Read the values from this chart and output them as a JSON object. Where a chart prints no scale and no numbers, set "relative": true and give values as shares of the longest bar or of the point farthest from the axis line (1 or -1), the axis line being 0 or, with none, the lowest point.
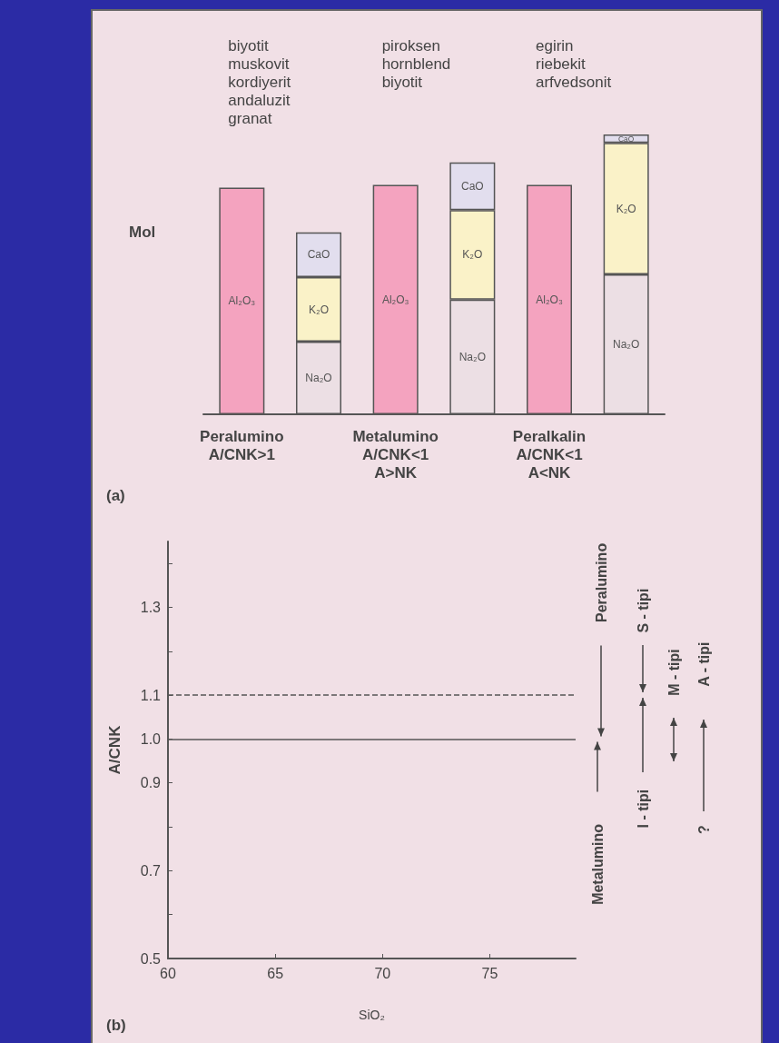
{
  "chart_data": [
    {
      "type": "bar",
      "relative": true,
      "stacked": true,
      "ylabel": "Mol",
      "categories": [
        "Peralumino\nA/CNK>1",
        null,
        "Metalumino\nA/CNK<1\nA>NK",
        null,
        "Peralkalin\nA/CNK<1\nA<NK",
        null
      ],
      "series": [
        {
          "name": "Al₂O₃",
          "color": "#f4a3bf",
          "values": [
            0.81,
            null,
            0.82,
            null,
            0.82,
            null
          ]
        },
        {
          "name": "Na₂O",
          "color": "#ecdfe4",
          "values": [
            null,
            0.26,
            null,
            0.41,
            null,
            0.5
          ]
        },
        {
          "name": "K₂O",
          "color": "#faf2c8",
          "values": [
            null,
            0.23,
            null,
            0.32,
            null,
            0.47
          ]
        },
        {
          "name": "CaO",
          "color": "#e2deee",
          "values": [
            null,
            0.16,
            null,
            0.17,
            null,
            0.03
          ]
        }
      ],
      "annotations": [
        "biyotit\nmuskovit\nkordiyerit\nandaluzit\ngranat",
        "piroksen\nhornblend\nbiyotit",
        "egirin\nriebekit\narfvedsonit",
        "(a)"
      ]
    },
    {
      "type": "line",
      "xlabel": "SiO₂",
      "ylabel": "A/CNK",
      "xlim": [
        60,
        79
      ],
      "ylim": [
        0.5,
        1.45
      ],
      "xticks": [
        60,
        65,
        70,
        75
      ],
      "yticks": [
        0.5,
        {
          "value": 0.6,
          "label": null
        },
        0.7,
        {
          "value": 0.8,
          "label": null
        },
        0.9,
        {
          "value": 1,
          "label": "1.0"
        },
        1.1,
        {
          "value": 1.2,
          "label": null
        },
        1.3,
        {
          "value": 1.4,
          "label": null
        }
      ],
      "ref_lines": [
        {
          "axis": "y",
          "value": 1,
          "line_style": "solid",
          "color": "#555555"
        },
        {
          "axis": "y",
          "value": 1.1,
          "line_style": "dashed",
          "color": "#555555"
        }
      ],
      "annotations": [
        "Peralumino",
        "Metalumino",
        "S - tipi",
        "I - tipi",
        "M - tipi",
        "A - tipi",
        "?",
        "(b)"
      ]
    }
  ]
}
